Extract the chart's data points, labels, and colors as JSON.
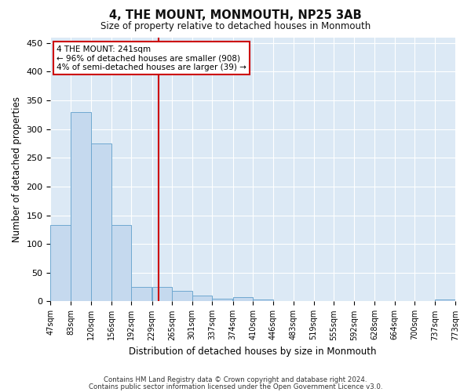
{
  "title": "4, THE MOUNT, MONMOUTH, NP25 3AB",
  "subtitle": "Size of property relative to detached houses in Monmouth",
  "xlabel": "Distribution of detached houses by size in Monmouth",
  "ylabel": "Number of detached properties",
  "bar_color": "#c5d9ee",
  "bar_edge_color": "#6fa8d0",
  "line_color": "#cc0000",
  "background_color": "#ffffff",
  "plot_bg_color": "#dce9f5",
  "grid_color": "#ffffff",
  "bins": [
    47,
    83,
    120,
    156,
    192,
    229,
    265,
    301,
    337,
    374,
    410,
    446,
    483,
    519,
    555,
    592,
    628,
    664,
    700,
    737,
    773
  ],
  "values": [
    133,
    330,
    275,
    133,
    25,
    25,
    18,
    10,
    5,
    8,
    4,
    0,
    0,
    0,
    0,
    1,
    0,
    0,
    0,
    4
  ],
  "property_size": 241,
  "ann_line1": "4 THE MOUNT: 241sqm",
  "ann_line2": "← 96% of detached houses are smaller (908)",
  "ann_line3": "4% of semi-detached houses are larger (39) →",
  "ylim": [
    0,
    460
  ],
  "yticks": [
    0,
    50,
    100,
    150,
    200,
    250,
    300,
    350,
    400,
    450
  ],
  "footnote1": "Contains HM Land Registry data © Crown copyright and database right 2024.",
  "footnote2": "Contains public sector information licensed under the Open Government Licence v3.0."
}
